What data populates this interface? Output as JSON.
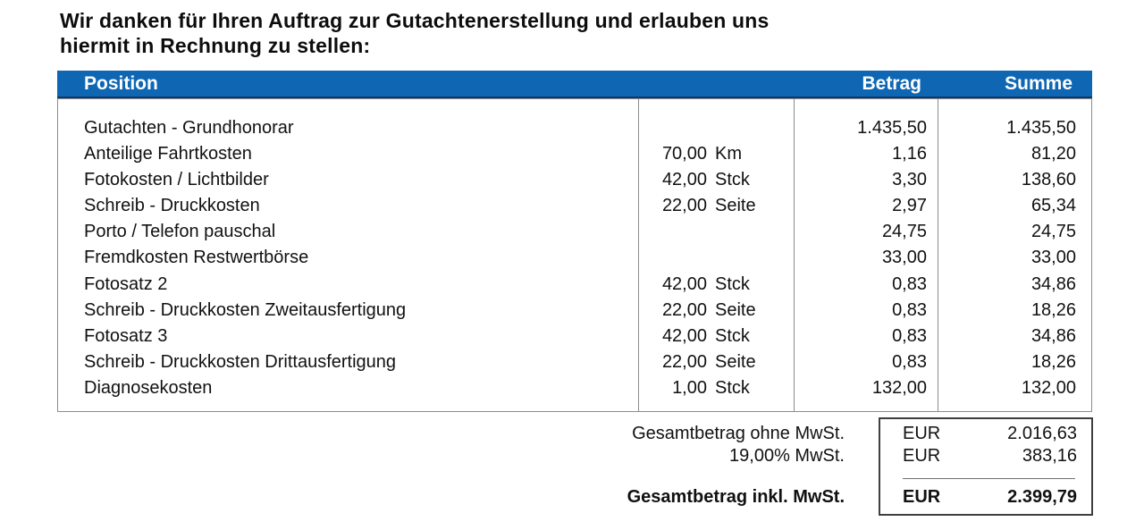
{
  "intro": {
    "line1": "Wir danken für Ihren Auftrag zur Gutachtenerstellung und erlauben uns",
    "line2": "hiermit in Rechnung zu stellen:"
  },
  "table": {
    "headers": {
      "position": "Position",
      "betrag": "Betrag",
      "summe": "Summe"
    },
    "rows": [
      {
        "description": "Gutachten - Grundhonorar",
        "qty": "",
        "unit": "",
        "betrag": "1.435,50",
        "summe": "1.435,50"
      },
      {
        "description": "Anteilige Fahrtkosten",
        "qty": "70,00",
        "unit": "Km",
        "betrag": "1,16",
        "summe": "81,20"
      },
      {
        "description": "Fotokosten / Lichtbilder",
        "qty": "42,00",
        "unit": "Stck",
        "betrag": "3,30",
        "summe": "138,60"
      },
      {
        "description": "Schreib - Druckkosten",
        "qty": "22,00",
        "unit": "Seite",
        "betrag": "2,97",
        "summe": "65,34"
      },
      {
        "description": "Porto / Telefon pauschal",
        "qty": "",
        "unit": "",
        "betrag": "24,75",
        "summe": "24,75"
      },
      {
        "description": "Fremdkosten Restwertbörse",
        "qty": "",
        "unit": "",
        "betrag": "33,00",
        "summe": "33,00"
      },
      {
        "description": "Fotosatz 2",
        "qty": "42,00",
        "unit": "Stck",
        "betrag": "0,83",
        "summe": "34,86"
      },
      {
        "description": "Schreib - Druckkosten Zweitausfertigung",
        "qty": "22,00",
        "unit": "Seite",
        "betrag": "0,83",
        "summe": "18,26"
      },
      {
        "description": "Fotosatz 3",
        "qty": "42,00",
        "unit": "Stck",
        "betrag": "0,83",
        "summe": "34,86"
      },
      {
        "description": "Schreib - Druckkosten Drittausfertigung",
        "qty": "22,00",
        "unit": "Seite",
        "betrag": "0,83",
        "summe": "18,26"
      },
      {
        "description": "Diagnosekosten",
        "qty": "1,00",
        "unit": "Stck",
        "betrag": "132,00",
        "summe": "132,00"
      }
    ]
  },
  "totals": {
    "net": {
      "label": "Gesamtbetrag ohne MwSt.",
      "currency": "EUR",
      "amount": "2.016,63"
    },
    "vat": {
      "label": "19,00% MwSt.",
      "currency": "EUR",
      "amount": "383,16"
    },
    "gross": {
      "label": "Gesamtbetrag inkl. MwSt.",
      "currency": "EUR",
      "amount": "2.399,79"
    }
  },
  "colors": {
    "header_bg": "#0f67b4",
    "header_text": "#ffffff",
    "header_edge": "#0e3766"
  }
}
